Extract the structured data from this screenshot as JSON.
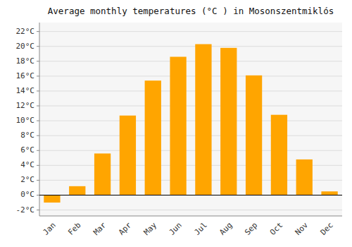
{
  "chart_data": {
    "type": "bar",
    "title": "Average monthly temperatures (°C ) in Mosonszentmiklós",
    "categories": [
      "Jan",
      "Feb",
      "Mar",
      "Apr",
      "May",
      "Jun",
      "Jul",
      "Aug",
      "Sep",
      "Oct",
      "Nov",
      "Dec"
    ],
    "values": [
      -1.0,
      1.2,
      5.6,
      10.7,
      15.4,
      18.6,
      20.3,
      19.8,
      16.1,
      10.8,
      4.8,
      0.5
    ],
    "color": "#FFA500",
    "ylim": [
      -2.8,
      23.2
    ],
    "yticks": [
      {
        "value": -2,
        "label": "-2°C"
      },
      {
        "value": 0,
        "label": "0°C"
      },
      {
        "value": 2,
        "label": "2°C"
      },
      {
        "value": 4,
        "label": "4°C"
      },
      {
        "value": 6,
        "label": "6°C"
      },
      {
        "value": 8,
        "label": "8°C"
      },
      {
        "value": 10,
        "label": "10°C"
      },
      {
        "value": 12,
        "label": "12°C"
      },
      {
        "value": 14,
        "label": "14°C"
      },
      {
        "value": 16,
        "label": "16°C"
      },
      {
        "value": 18,
        "label": "18°C"
      },
      {
        "value": 20,
        "label": "20°C"
      },
      {
        "value": 22,
        "label": "22°C"
      }
    ],
    "grid": true
  }
}
